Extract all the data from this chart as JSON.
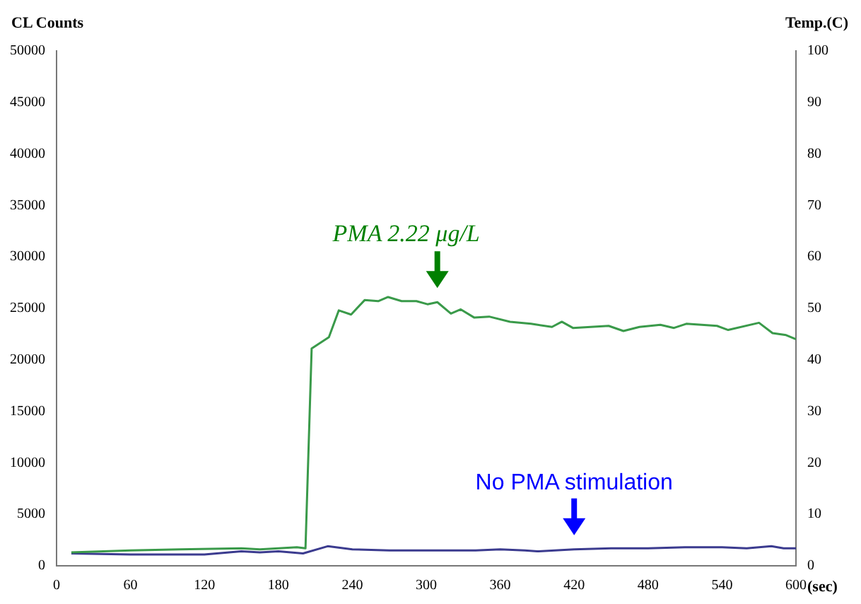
{
  "chart_data": {
    "type": "line",
    "ylabel": "CL Counts",
    "y2label": "Temp.(C)",
    "xlabel": "(sec)",
    "xlim": [
      0,
      600
    ],
    "xticks": [
      0,
      60,
      120,
      180,
      240,
      300,
      360,
      420,
      480,
      540,
      600
    ],
    "ylim": [
      0,
      50000
    ],
    "yticks": [
      0,
      5000,
      10000,
      15000,
      20000,
      25000,
      30000,
      35000,
      40000,
      45000,
      50000
    ],
    "y2lim": [
      0,
      100
    ],
    "y2ticks": [
      0,
      10,
      20,
      30,
      40,
      50,
      60,
      70,
      80,
      90,
      100
    ],
    "series": [
      {
        "color": "#3a9a4a",
        "x": [
          12,
          60,
          100,
          150,
          165,
          195,
          202,
          207,
          221,
          229,
          239,
          250,
          261,
          269,
          280,
          292,
          301,
          309,
          320,
          328,
          339,
          351,
          368,
          385,
          402,
          410,
          419,
          448,
          460,
          473,
          490,
          501,
          511,
          536,
          545,
          570,
          581,
          592,
          600
        ],
        "values": [
          1300,
          1500,
          1600,
          1700,
          1600,
          1800,
          1700,
          21100,
          22200,
          24800,
          24400,
          25800,
          25700,
          26100,
          25700,
          25700,
          25400,
          25600,
          24500,
          24900,
          24100,
          24200,
          23700,
          23500,
          23200,
          23700,
          23100,
          23300,
          22800,
          23200,
          23400,
          23100,
          23500,
          23300,
          22900,
          23600,
          22600,
          22400,
          22000
        ]
      },
      {
        "color": "#3b3b8f",
        "x": [
          12,
          60,
          120,
          150,
          165,
          180,
          200,
          220,
          240,
          270,
          300,
          340,
          360,
          380,
          390,
          420,
          450,
          480,
          510,
          540,
          560,
          580,
          590,
          600
        ],
        "values": [
          1200,
          1100,
          1100,
          1400,
          1300,
          1400,
          1200,
          1900,
          1600,
          1500,
          1500,
          1500,
          1600,
          1500,
          1400,
          1600,
          1700,
          1700,
          1800,
          1800,
          1700,
          1900,
          1700,
          1700
        ]
      }
    ],
    "annotations": [
      {
        "text": "PMA 2.22 μg/L",
        "x": 309,
        "y": 25600
      },
      {
        "text": "No PMA stimulation",
        "x": 420,
        "y": 1600
      }
    ],
    "marker": "none",
    "grid": false,
    "legend": false
  }
}
